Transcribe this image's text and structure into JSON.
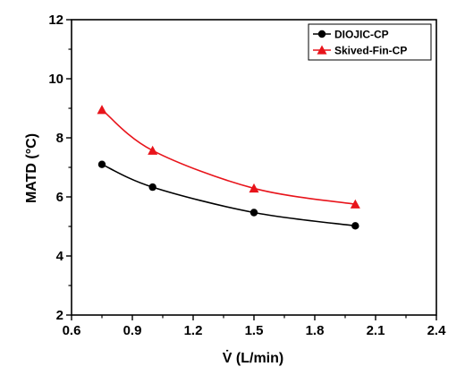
{
  "chart_data": {
    "type": "line",
    "xlabel": "V̇ (L/min)",
    "ylabel": "MATD (°C)",
    "xlim": [
      0.6,
      2.4
    ],
    "ylim": [
      2,
      12
    ],
    "xticks": [
      "0.6",
      "0.9",
      "1.2",
      "1.5",
      "1.8",
      "2.1",
      "2.4"
    ],
    "yticks": [
      "2",
      "4",
      "6",
      "8",
      "10",
      "12"
    ],
    "grid": false,
    "legend_position": "top-right",
    "series": [
      {
        "name": "DIOJIC-CP",
        "color": "#000000",
        "marker": "circle",
        "x": [
          0.75,
          1.0,
          1.5,
          2.0
        ],
        "y": [
          7.1,
          6.33,
          5.47,
          5.02
        ]
      },
      {
        "name": "Skived-Fin-CP",
        "color": "#e8141b",
        "marker": "triangle",
        "x": [
          0.75,
          1.0,
          1.5,
          2.0
        ],
        "y": [
          8.95,
          7.57,
          6.29,
          5.75
        ]
      }
    ]
  }
}
